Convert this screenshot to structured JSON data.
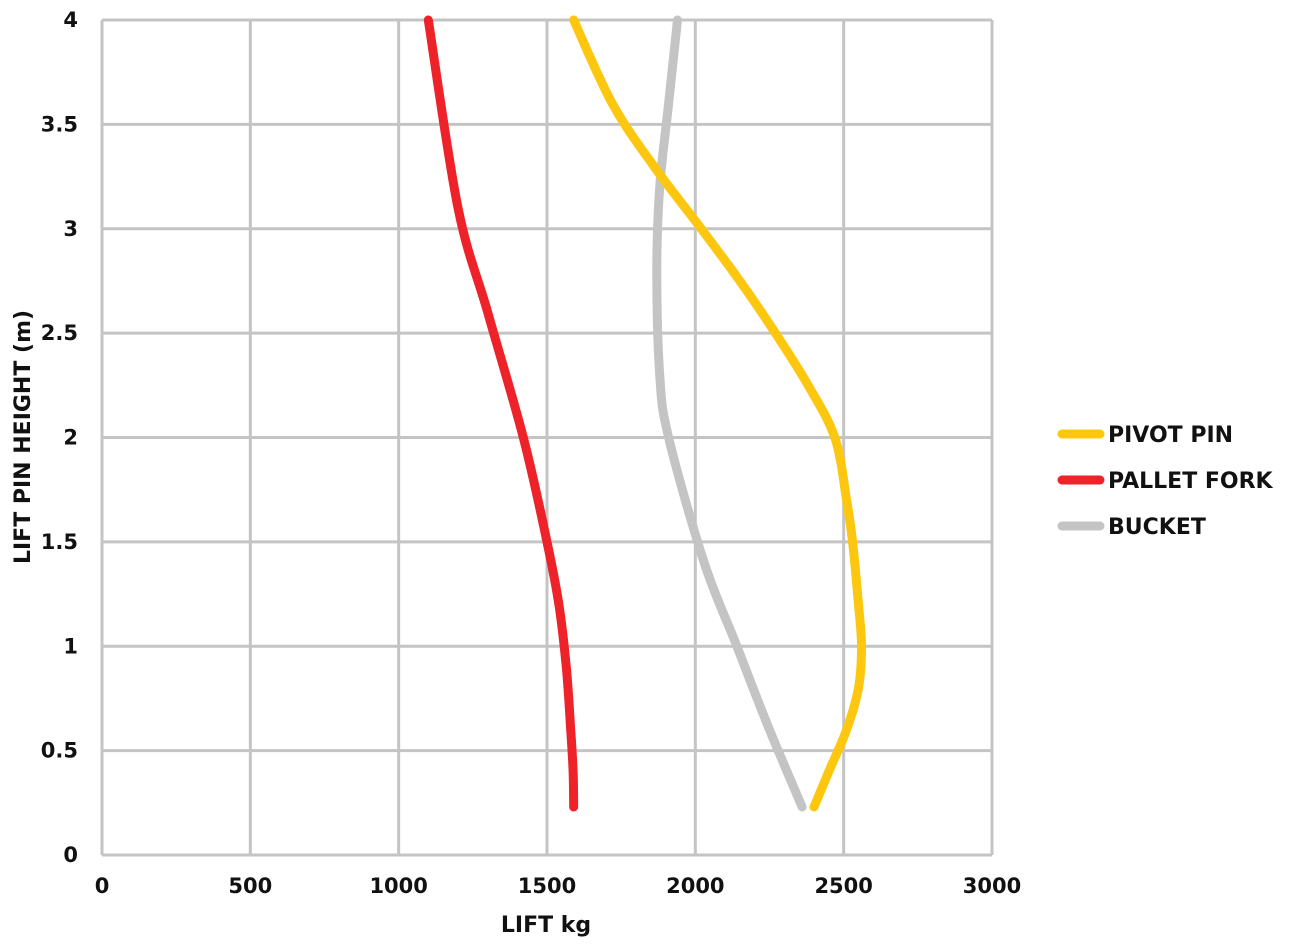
{
  "chart_data": {
    "type": "line",
    "title": "",
    "xlabel": "LIFT kg",
    "ylabel": "LIFT PIN HEIGHT (m)",
    "xlim": [
      0,
      3000
    ],
    "ylim": [
      0,
      4
    ],
    "x_ticks": [
      0,
      500,
      1000,
      1500,
      2000,
      2500,
      3000
    ],
    "y_ticks": [
      0,
      0.5,
      1,
      1.5,
      2,
      2.5,
      3,
      3.5,
      4
    ],
    "x_tick_labels": [
      "0",
      "500",
      "1000",
      "1500",
      "2000",
      "2500",
      "3000"
    ],
    "y_tick_labels": [
      "0",
      "0.5",
      "1",
      "1.5",
      "2",
      "2.5",
      "3",
      "3.5",
      "4"
    ],
    "grid": true,
    "legend_position": "right",
    "series": [
      {
        "name": "PIVOT PIN",
        "color": "#fdc70f",
        "points": [
          [
            2400,
            0.23
          ],
          [
            2450,
            0.4
          ],
          [
            2510,
            0.6
          ],
          [
            2550,
            0.8
          ],
          [
            2560,
            1.0
          ],
          [
            2550,
            1.2
          ],
          [
            2530,
            1.5
          ],
          [
            2510,
            1.7
          ],
          [
            2470,
            2.0
          ],
          [
            2380,
            2.25
          ],
          [
            2270,
            2.5
          ],
          [
            2150,
            2.75
          ],
          [
            2020,
            3.0
          ],
          [
            1860,
            3.3
          ],
          [
            1720,
            3.6
          ],
          [
            1590,
            4.0
          ]
        ]
      },
      {
        "name": "PALLET FORK",
        "color": "#ee2229",
        "points": [
          [
            1590,
            0.23
          ],
          [
            1588,
            0.4
          ],
          [
            1580,
            0.6
          ],
          [
            1565,
            0.9
          ],
          [
            1540,
            1.2
          ],
          [
            1500,
            1.5
          ],
          [
            1420,
            2.0
          ],
          [
            1300,
            2.6
          ],
          [
            1200,
            3.1
          ],
          [
            1100,
            4.0
          ]
        ]
      },
      {
        "name": "BUCKET",
        "color": "#c4c4c4",
        "points": [
          [
            2360,
            0.23
          ],
          [
            2250,
            0.6
          ],
          [
            2140,
            1.0
          ],
          [
            2030,
            1.4
          ],
          [
            1910,
            2.0
          ],
          [
            1880,
            2.3
          ],
          [
            1870,
            2.8
          ],
          [
            1880,
            3.2
          ],
          [
            1910,
            3.6
          ],
          [
            1940,
            4.0
          ]
        ]
      }
    ]
  }
}
